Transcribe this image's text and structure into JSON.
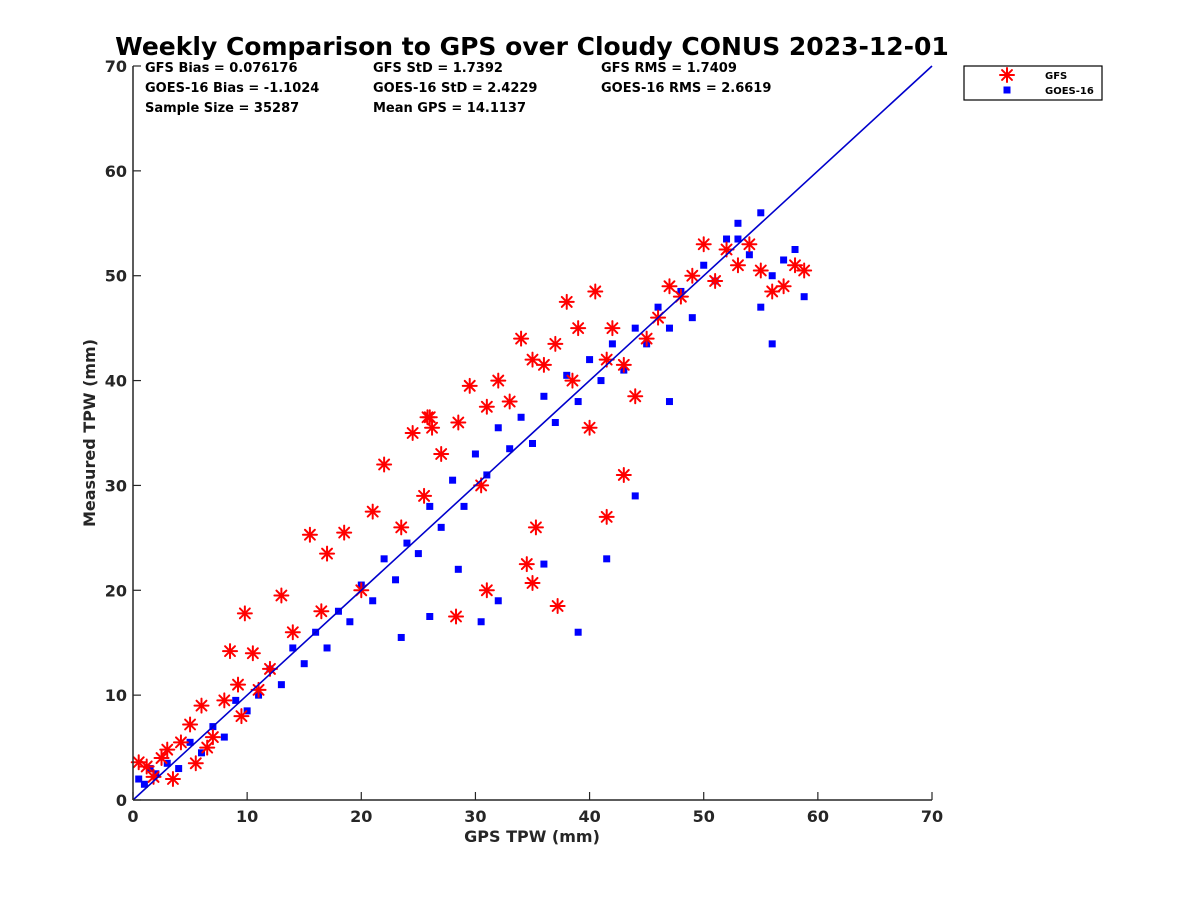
{
  "colors": {
    "gfs": "#ff0000",
    "goes": "#0000ff",
    "axis": "#262626",
    "one_to_one": "#0000cc"
  },
  "stats": {
    "gfs_bias": "GFS Bias = 0.076176",
    "gfs_std": "GFS StD = 1.7392",
    "gfs_rms": "GFS RMS = 1.7409",
    "goes_bias": "GOES-16 Bias = -1.1024",
    "goes_std": "GOES-16 StD = 2.4229",
    "goes_rms": "GOES-16 RMS = 2.6619",
    "sample_size": "Sample Size = 35287",
    "mean_gps": "Mean GPS = 14.1137"
  },
  "chart_data": {
    "type": "scatter",
    "title": "Weekly Comparison to GPS over Cloudy CONUS 2023-12-01",
    "xlabel": "GPS TPW (mm)",
    "ylabel": "Measured TPW (mm)",
    "xlim": [
      0,
      70
    ],
    "ylim": [
      0,
      70
    ],
    "xticks": [
      "0",
      "10",
      "20",
      "30",
      "40",
      "50",
      "60",
      "70"
    ],
    "yticks": [
      "0",
      "10",
      "20",
      "30",
      "40",
      "50",
      "60",
      "70"
    ],
    "grid": false,
    "legend_position": "outside-top-right",
    "reference_line": {
      "name": "1:1",
      "x": [
        0,
        70
      ],
      "y": [
        0,
        70
      ]
    },
    "series": [
      {
        "name": "GFS",
        "marker": "asterisk",
        "color": "#ff0000",
        "x": [
          0.5,
          1.2,
          1.8,
          2.5,
          3.0,
          3.5,
          4.2,
          5.0,
          5.5,
          6.0,
          7.0,
          8.0,
          8.5,
          9.5,
          9.8,
          10.5,
          11.0,
          12.0,
          13.0,
          14.0,
          15.5,
          16.5,
          17.0,
          18.5,
          20.0,
          21.0,
          22.0,
          23.5,
          24.5,
          25.5,
          26.0,
          27.0,
          28.5,
          29.5,
          30.5,
          31.0,
          32.0,
          33.0,
          34.0,
          35.0,
          35.3,
          36.0,
          37.0,
          37.2,
          38.0,
          38.5,
          39.0,
          40.0,
          40.5,
          41.5,
          42.0,
          43.0,
          44.0,
          45.0,
          46.0,
          47.0,
          48.0,
          49.0,
          50.0,
          51.0,
          52.0,
          53.0,
          54.0,
          55.0,
          56.0,
          57.0,
          58.0,
          58.8,
          25.8,
          26.2,
          34.5,
          41.5,
          43.0,
          28.3,
          31.0,
          35.0,
          9.2,
          6.5
        ],
        "y": [
          3.6,
          3.2,
          2.2,
          4.0,
          4.8,
          2.0,
          5.5,
          7.2,
          3.5,
          9.0,
          6.0,
          9.5,
          14.2,
          8.0,
          17.8,
          14.0,
          10.5,
          12.5,
          19.5,
          16.0,
          25.3,
          18.0,
          23.5,
          25.5,
          20.0,
          27.5,
          32.0,
          26.0,
          35.0,
          29.0,
          36.5,
          33.0,
          36.0,
          39.5,
          30.0,
          37.5,
          40.0,
          38.0,
          44.0,
          42.0,
          26.0,
          41.5,
          43.5,
          18.5,
          47.5,
          40.0,
          45.0,
          35.5,
          48.5,
          42.0,
          45.0,
          41.5,
          38.5,
          44.0,
          46.0,
          49.0,
          48.0,
          50.0,
          53.0,
          49.5,
          52.5,
          51.0,
          53.0,
          50.5,
          48.5,
          49.0,
          51.0,
          50.5,
          36.5,
          35.5,
          22.5,
          27.0,
          31.0,
          17.5,
          20.0,
          20.7,
          11.0,
          5.0
        ]
      },
      {
        "name": "GOES-16",
        "marker": "square",
        "color": "#0000ff",
        "x": [
          0.5,
          1.0,
          1.5,
          2.0,
          3.0,
          4.0,
          5.0,
          6.0,
          7.0,
          8.0,
          9.0,
          10.0,
          11.0,
          12.0,
          13.0,
          14.0,
          15.0,
          16.0,
          17.0,
          18.0,
          19.0,
          20.0,
          21.0,
          22.0,
          23.0,
          24.0,
          25.0,
          26.0,
          27.0,
          28.0,
          29.0,
          30.0,
          31.0,
          32.0,
          33.0,
          34.0,
          35.0,
          36.0,
          37.0,
          38.0,
          39.0,
          40.0,
          41.0,
          42.0,
          43.0,
          44.0,
          45.0,
          46.0,
          47.0,
          48.0,
          49.0,
          50.0,
          51.0,
          52.0,
          53.0,
          54.0,
          55.0,
          56.0,
          57.0,
          58.0,
          58.8,
          53.0,
          55.0,
          47.0,
          56.0,
          41.5,
          44.0,
          39.0,
          30.5,
          28.5,
          32.0,
          36.0,
          23.5,
          26.0
        ],
        "y": [
          2.0,
          1.5,
          3.0,
          2.5,
          3.5,
          3.0,
          5.5,
          4.5,
          7.0,
          6.0,
          9.5,
          8.5,
          10.0,
          12.5,
          11.0,
          14.5,
          13.0,
          16.0,
          14.5,
          18.0,
          17.0,
          20.5,
          19.0,
          23.0,
          21.0,
          24.5,
          23.5,
          28.0,
          26.0,
          30.5,
          28.0,
          33.0,
          31.0,
          35.5,
          33.5,
          36.5,
          34.0,
          38.5,
          36.0,
          40.5,
          38.0,
          42.0,
          40.0,
          43.5,
          41.0,
          45.0,
          43.5,
          47.0,
          45.0,
          48.5,
          46.0,
          51.0,
          49.5,
          53.5,
          55.0,
          52.0,
          56.0,
          50.0,
          51.5,
          52.5,
          48.0,
          53.5,
          47.0,
          38.0,
          43.5,
          23.0,
          29.0,
          16.0,
          17.0,
          22.0,
          19.0,
          22.5,
          15.5,
          17.5
        ]
      }
    ]
  }
}
